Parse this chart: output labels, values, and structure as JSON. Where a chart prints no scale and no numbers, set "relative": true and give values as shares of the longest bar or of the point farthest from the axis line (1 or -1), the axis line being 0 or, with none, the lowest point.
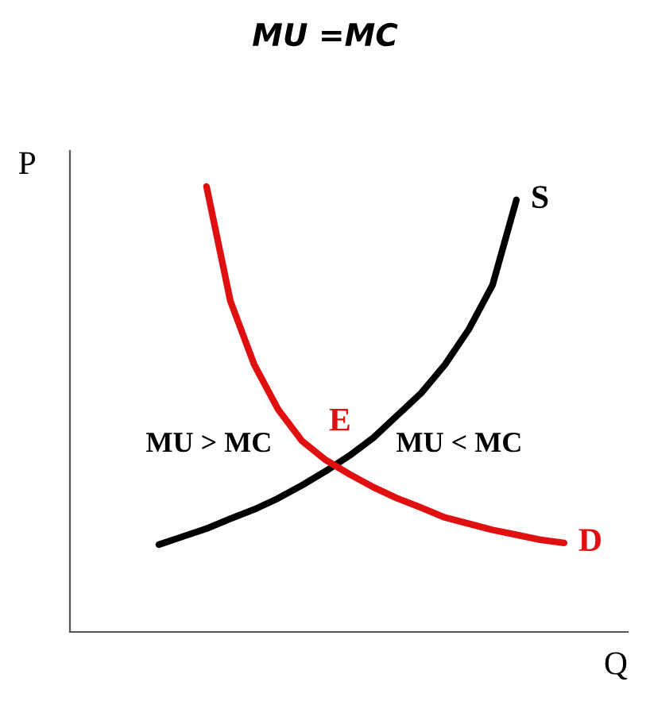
{
  "chart_data": {
    "type": "line",
    "title": "MU =MC",
    "xlabel": "Q",
    "ylabel": "P",
    "relative": true,
    "legend": false,
    "tick_labels": false,
    "marker": "none",
    "line_style": "solid",
    "categories": [
      null,
      null,
      null,
      null,
      null,
      null,
      null,
      null,
      null,
      null,
      null,
      null,
      null,
      null,
      null,
      null,
      null,
      null
    ],
    "series": [
      {
        "name": "S",
        "color": "#000000",
        "values": [
          0.196,
          0.214,
          0.232,
          0.254,
          0.275,
          0.3,
          0.329,
          0.361,
          0.396,
          0.436,
          0.486,
          0.536,
          0.6,
          0.679,
          0.779,
          0.97,
          null,
          null
        ]
      },
      {
        "name": "D",
        "color": "#e01010",
        "values": [
          null,
          null,
          1.0,
          0.743,
          0.6,
          0.5,
          0.429,
          0.386,
          0.354,
          0.325,
          0.3,
          0.279,
          0.257,
          0.243,
          0.229,
          0.218,
          0.207,
          0.2
        ]
      }
    ],
    "annotations": [
      "E",
      "MU > MC",
      "MU < MC"
    ]
  }
}
